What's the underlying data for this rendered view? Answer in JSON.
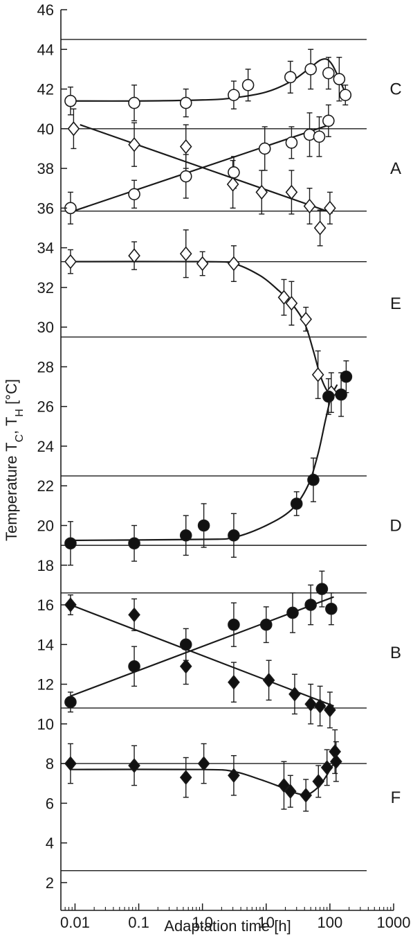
{
  "chart_data": {
    "type": "scatter",
    "xlabel": "Adaptation time [h]",
    "ylabel_main": "Temperature T",
    "ylabel_sub1": "C",
    "ylabel_mid": ", T",
    "ylabel_sub2": "H",
    "ylabel_unit": " [°C]",
    "xscale": "log",
    "xlim": [
      0.006,
      1000
    ],
    "ylim": [
      0.6,
      46
    ],
    "x_ticks": [
      {
        "value": 0.01,
        "label": "0.01"
      },
      {
        "value": 0.1,
        "label": "0.1"
      },
      {
        "value": 1,
        "label": "1.0"
      },
      {
        "value": 10,
        "label": "10"
      },
      {
        "value": 100,
        "label": "100"
      },
      {
        "value": 1000,
        "label": "1000"
      }
    ],
    "y_ticks": [
      {
        "value": 2,
        "label": "2"
      },
      {
        "value": 4,
        "label": "4"
      },
      {
        "value": 6,
        "label": "6"
      },
      {
        "value": 8,
        "label": "8"
      },
      {
        "value": 10,
        "label": "10"
      },
      {
        "value": 12,
        "label": "12"
      },
      {
        "value": 14,
        "label": "14"
      },
      {
        "value": 16,
        "label": "16"
      },
      {
        "value": 18,
        "label": "18"
      },
      {
        "value": 20,
        "label": "20"
      },
      {
        "value": 22,
        "label": "22"
      },
      {
        "value": 24,
        "label": "24"
      },
      {
        "value": 26,
        "label": "26"
      },
      {
        "value": 28,
        "label": "28"
      },
      {
        "value": 30,
        "label": "30"
      },
      {
        "value": 32,
        "label": "32"
      },
      {
        "value": 34,
        "label": "34"
      },
      {
        "value": 36,
        "label": "36"
      },
      {
        "value": 38,
        "label": "38"
      },
      {
        "value": 40,
        "label": "40"
      },
      {
        "value": 42,
        "label": "42"
      },
      {
        "value": 44,
        "label": "44"
      },
      {
        "value": 46,
        "label": "46"
      }
    ],
    "reference_lines": [
      44.5,
      40.0,
      35.85,
      33.3,
      29.5,
      22.5,
      19.0,
      16.6,
      10.8,
      8.0,
      2.6
    ],
    "panel_labels": [
      {
        "label": "C",
        "y": 42.0
      },
      {
        "label": "A",
        "y": 38.0
      },
      {
        "label": "E",
        "y": 31.2
      },
      {
        "label": "D",
        "y": 20.0
      },
      {
        "label": "B",
        "y": 13.6
      },
      {
        "label": "F",
        "y": 6.3
      }
    ],
    "series": [
      {
        "panel": "C",
        "marker": "circle",
        "fill": "open",
        "points": [
          {
            "x": 0.0085,
            "y": 41.4,
            "err": 0.7
          },
          {
            "x": 0.085,
            "y": 41.3,
            "err": 0.9
          },
          {
            "x": 0.55,
            "y": 41.3,
            "err": 0.7
          },
          {
            "x": 3.1,
            "y": 41.7,
            "err": 0.7
          },
          {
            "x": 5.2,
            "y": 42.2,
            "err": 0.8
          },
          {
            "x": 24,
            "y": 42.6,
            "err": 0.8
          },
          {
            "x": 50,
            "y": 43.0,
            "err": 1.0
          },
          {
            "x": 95,
            "y": 42.8,
            "err": 0.8
          },
          {
            "x": 140,
            "y": 42.5,
            "err": 1.1
          },
          {
            "x": 175,
            "y": 41.7,
            "err": 0.5
          }
        ],
        "fit": [
          [
            0.0085,
            41.4
          ],
          [
            0.1,
            41.4
          ],
          [
            1,
            41.45
          ],
          [
            3,
            41.55
          ],
          [
            10,
            41.85
          ],
          [
            25,
            42.4
          ],
          [
            50,
            43.1
          ],
          [
            70,
            43.45
          ],
          [
            90,
            43.5
          ],
          [
            110,
            43.2
          ],
          [
            140,
            42.5
          ],
          [
            175,
            41.8
          ]
        ]
      },
      {
        "panel": "A",
        "marker": "circle",
        "fill": "open",
        "points": [
          {
            "x": 0.0085,
            "y": 36.0,
            "err": 0.8
          },
          {
            "x": 0.085,
            "y": 36.7,
            "err": 0.7
          },
          {
            "x": 0.55,
            "y": 37.6,
            "err": 1.1
          },
          {
            "x": 3.1,
            "y": 37.8,
            "err": 0.8
          },
          {
            "x": 9.5,
            "y": 39.0,
            "err": 1.1
          },
          {
            "x": 25,
            "y": 39.3,
            "err": 0.8
          },
          {
            "x": 48,
            "y": 39.7,
            "err": 1.1
          },
          {
            "x": 68,
            "y": 39.6,
            "err": 1.0
          },
          {
            "x": 95,
            "y": 40.4,
            "err": 0.8
          }
        ],
        "fit": [
          [
            0.0085,
            35.8
          ],
          [
            110,
            40.25
          ]
        ]
      },
      {
        "panel": "A",
        "marker": "diamond",
        "fill": "open",
        "points": [
          {
            "x": 0.0095,
            "y": 40.0,
            "err": 1.0
          },
          {
            "x": 0.085,
            "y": 39.2,
            "err": 1.1
          },
          {
            "x": 0.55,
            "y": 39.1,
            "err": 1.1
          },
          {
            "x": 3.0,
            "y": 37.2,
            "err": 1.2
          },
          {
            "x": 8.5,
            "y": 36.8,
            "err": 1.1
          },
          {
            "x": 25,
            "y": 36.8,
            "err": 1.1
          },
          {
            "x": 48,
            "y": 36.1,
            "err": 0.9
          },
          {
            "x": 70,
            "y": 35.0,
            "err": 0.9
          },
          {
            "x": 100,
            "y": 36.0,
            "err": 0.8
          }
        ],
        "fit": [
          [
            0.012,
            40.2
          ],
          [
            110,
            35.75
          ]
        ]
      },
      {
        "panel": "E",
        "marker": "diamond",
        "fill": "open",
        "points": [
          {
            "x": 0.0085,
            "y": 33.3,
            "err": 0.6
          },
          {
            "x": 0.085,
            "y": 33.6,
            "err": 0.7
          },
          {
            "x": 0.55,
            "y": 33.7,
            "err": 1.2
          },
          {
            "x": 1.0,
            "y": 33.2,
            "err": 0.6
          },
          {
            "x": 3.1,
            "y": 33.2,
            "err": 0.9
          },
          {
            "x": 19,
            "y": 31.5,
            "err": 0.9
          },
          {
            "x": 25,
            "y": 31.2,
            "err": 1.1
          },
          {
            "x": 42,
            "y": 30.4,
            "err": 0.6
          },
          {
            "x": 65,
            "y": 27.6,
            "err": 1.2
          },
          {
            "x": 105,
            "y": 26.7,
            "err": 1.0
          }
        ],
        "fit": [
          [
            0.0085,
            33.3
          ],
          [
            1,
            33.3
          ],
          [
            3.1,
            33.2
          ],
          [
            8,
            32.6
          ],
          [
            15,
            31.9
          ],
          [
            25,
            31.2
          ],
          [
            40,
            30.2
          ],
          [
            55,
            28.8
          ],
          [
            70,
            27.6
          ],
          [
            90,
            26.8
          ],
          [
            105,
            26.7
          ]
        ]
      },
      {
        "panel": "D",
        "marker": "circle",
        "fill": "filled",
        "points": [
          {
            "x": 0.0085,
            "y": 19.1,
            "err": 1.1
          },
          {
            "x": 0.085,
            "y": 19.1,
            "err": 0.9
          },
          {
            "x": 0.55,
            "y": 19.5,
            "err": 1.0
          },
          {
            "x": 1.05,
            "y": 20.0,
            "err": 1.1
          },
          {
            "x": 3.1,
            "y": 19.5,
            "err": 1.1
          },
          {
            "x": 30,
            "y": 21.1,
            "err": 0.6
          },
          {
            "x": 55,
            "y": 22.3,
            "err": 1.1
          },
          {
            "x": 95,
            "y": 26.5,
            "err": 0.9
          },
          {
            "x": 150,
            "y": 26.6,
            "err": 1.1
          },
          {
            "x": 180,
            "y": 27.5,
            "err": 0.8
          }
        ],
        "fit": [
          [
            0.0085,
            19.25
          ],
          [
            1,
            19.3
          ],
          [
            3.1,
            19.4
          ],
          [
            10,
            20.0
          ],
          [
            25,
            20.8
          ],
          [
            45,
            22.0
          ],
          [
            65,
            23.6
          ],
          [
            85,
            25.3
          ],
          [
            105,
            26.5
          ],
          [
            130,
            27.1
          ]
        ]
      },
      {
        "panel": "B",
        "marker": "circle",
        "fill": "filled",
        "points": [
          {
            "x": 0.0085,
            "y": 11.1,
            "err": 0.5
          },
          {
            "x": 0.085,
            "y": 12.9,
            "err": 1.0
          },
          {
            "x": 0.55,
            "y": 14.0,
            "err": 0.8
          },
          {
            "x": 3.1,
            "y": 15.0,
            "err": 1.1
          },
          {
            "x": 10,
            "y": 15.0,
            "err": 0.9
          },
          {
            "x": 26,
            "y": 15.6,
            "err": 1.0
          },
          {
            "x": 50,
            "y": 16.0,
            "err": 1.0
          },
          {
            "x": 75,
            "y": 16.8,
            "err": 0.9
          },
          {
            "x": 105,
            "y": 15.8,
            "err": 0.8
          }
        ],
        "fit": [
          [
            0.0085,
            11.4
          ],
          [
            115,
            16.4
          ]
        ]
      },
      {
        "panel": "B",
        "marker": "diamond",
        "fill": "filled",
        "points": [
          {
            "x": 0.0085,
            "y": 16.0,
            "err": 0.5
          },
          {
            "x": 0.085,
            "y": 15.5,
            "err": 0.8
          },
          {
            "x": 0.55,
            "y": 12.9,
            "err": 0.9
          },
          {
            "x": 3.1,
            "y": 12.1,
            "err": 1.0
          },
          {
            "x": 11,
            "y": 12.2,
            "err": 1.0
          },
          {
            "x": 28,
            "y": 11.5,
            "err": 1.0
          },
          {
            "x": 50,
            "y": 11.0,
            "err": 1.0
          },
          {
            "x": 70,
            "y": 10.9,
            "err": 1.0
          },
          {
            "x": 100,
            "y": 10.7,
            "err": 0.9
          }
        ],
        "fit": [
          [
            0.0085,
            16.0
          ],
          [
            115,
            10.9
          ]
        ]
      },
      {
        "panel": "F",
        "marker": "diamond",
        "fill": "filled",
        "points": [
          {
            "x": 0.0085,
            "y": 8.0,
            "err": 1.0
          },
          {
            "x": 0.085,
            "y": 7.9,
            "err": 1.0
          },
          {
            "x": 0.55,
            "y": 7.3,
            "err": 1.0
          },
          {
            "x": 1.05,
            "y": 8.0,
            "err": 1.0
          },
          {
            "x": 3.1,
            "y": 7.4,
            "err": 1.0
          },
          {
            "x": 19,
            "y": 6.9,
            "err": 1.2
          },
          {
            "x": 24,
            "y": 6.6,
            "err": 0.8
          },
          {
            "x": 42,
            "y": 6.4,
            "err": 0.8
          },
          {
            "x": 66,
            "y": 7.1,
            "err": 0.8
          },
          {
            "x": 90,
            "y": 7.8,
            "err": 0.9
          },
          {
            "x": 120,
            "y": 8.6,
            "err": 1.1
          },
          {
            "x": 125,
            "y": 8.1,
            "err": 1.0
          }
        ],
        "fit": [
          [
            0.0085,
            7.7
          ],
          [
            1,
            7.7
          ],
          [
            3.1,
            7.6
          ],
          [
            8,
            7.2
          ],
          [
            16,
            6.85
          ],
          [
            30,
            6.5
          ],
          [
            45,
            6.45
          ],
          [
            65,
            6.8
          ],
          [
            85,
            7.3
          ],
          [
            105,
            7.8
          ],
          [
            120,
            8.1
          ]
        ]
      }
    ]
  }
}
